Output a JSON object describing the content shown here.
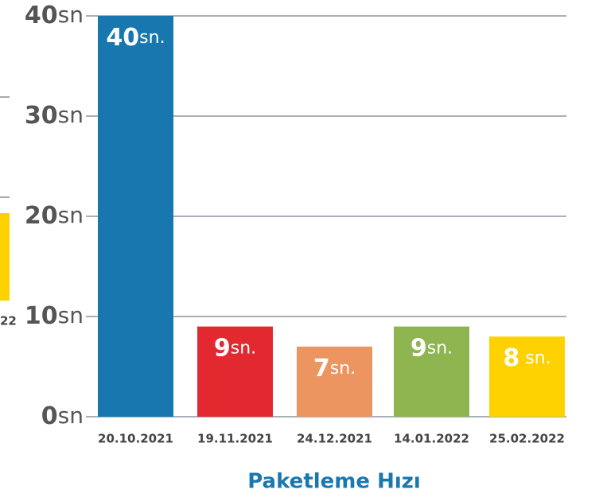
{
  "chart_data": {
    "type": "bar",
    "title": "Paketleme Hızı",
    "categories": [
      "20.10.2021",
      "19.11.2021",
      "24.12.2021",
      "14.01.2022",
      "25.02.2022"
    ],
    "values": [
      40,
      9,
      7,
      9,
      8
    ],
    "value_labels": [
      "40sn.",
      "9sn.",
      "7sn.",
      "9sn.",
      "8 sn."
    ],
    "colors": [
      "#1777ae",
      "#e2292f",
      "#ec9560",
      "#8fb551",
      "#fdd200"
    ],
    "ylim": [
      0,
      40
    ],
    "yticks": [
      {
        "value": 0,
        "label": "0sn"
      },
      {
        "value": 10,
        "label": "10sn"
      },
      {
        "value": 20,
        "label": "20sn"
      },
      {
        "value": 30,
        "label": "30sn"
      },
      {
        "value": 40,
        "label": "40sn"
      }
    ],
    "grid": true,
    "left_fragment_label": "22"
  }
}
